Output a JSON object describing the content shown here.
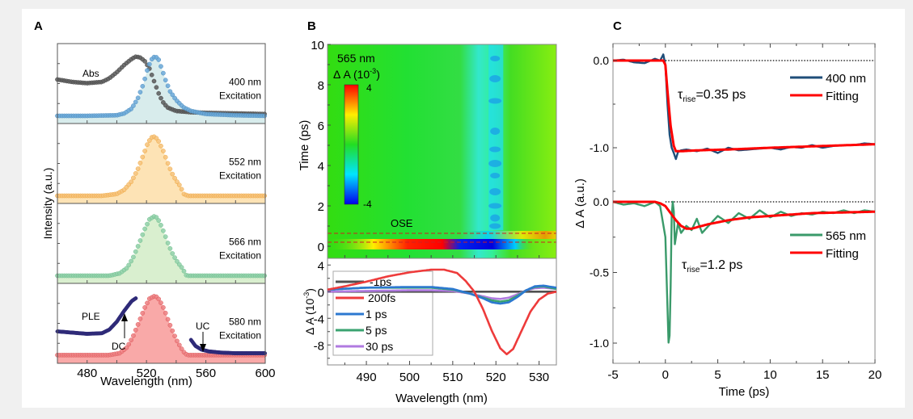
{
  "panel_labels": [
    "A",
    "B",
    "C"
  ],
  "colors": {
    "abs": "#4a4a4a",
    "ex400": "#4f8fc0",
    "ex400_fill": "#d8ecec",
    "ex400_text": "#2f5f86",
    "ex552": "#f0a840",
    "ex552_fill": "#fde3b5",
    "ex552_text": "#c88a10",
    "ex566": "#6fbf8f",
    "ex566_fill": "#d9efcf",
    "ex566_text": "#3f8a5f",
    "ex580": "#e0585a",
    "ex580_fill": "#f9a9a8",
    "ex580_text": "#8a1f2f",
    "ple": "#2e2a78",
    "c_400": "#1f4e79",
    "c_565": "#3a9a6a",
    "fit": "#ff0000"
  },
  "chart_data": [
    {
      "id": "A",
      "type": "scatter",
      "title": "",
      "xlabel": "Wavelength (nm)",
      "ylabel": "Intensity (a.u.)",
      "xlim": [
        460,
        600
      ],
      "xticks": [
        480,
        520,
        560,
        600
      ],
      "subplots": [
        {
          "label_line1": "400 nm",
          "label_line2": "Excitation",
          "annotations": [
            "Abs"
          ],
          "series": [
            {
              "name": "Abs",
              "x": [
                460,
                470,
                480,
                490,
                495,
                500,
                505,
                510,
                513,
                516,
                519,
                522,
                525,
                528,
                531,
                534,
                540,
                550,
                560,
                580,
                600
              ],
              "y": [
                0.62,
                0.58,
                0.56,
                0.58,
                0.64,
                0.74,
                0.86,
                0.96,
                1.0,
                0.98,
                0.92,
                0.8,
                0.6,
                0.4,
                0.25,
                0.16,
                0.1,
                0.08,
                0.07,
                0.06,
                0.05
              ]
            },
            {
              "name": "PL 400 nm",
              "x": [
                460,
                480,
                500,
                505,
                510,
                514,
                518,
                521,
                524,
                526,
                528,
                530,
                533,
                536,
                540,
                545,
                550,
                560,
                580,
                600
              ],
              "y": [
                0.02,
                0.02,
                0.03,
                0.06,
                0.14,
                0.3,
                0.55,
                0.82,
                0.98,
                1.0,
                0.96,
                0.82,
                0.6,
                0.42,
                0.28,
                0.16,
                0.1,
                0.05,
                0.03,
                0.02
              ]
            }
          ]
        },
        {
          "label_line1": "552 nm",
          "label_line2": "Excitation",
          "series": [
            {
              "name": "PL 552 nm",
              "x": [
                460,
                490,
                500,
                505,
                510,
                514,
                518,
                521,
                524,
                526,
                528,
                531,
                534,
                537,
                540,
                543,
                545,
                548,
                560,
                600
              ],
              "y": [
                0.02,
                0.02,
                0.05,
                0.12,
                0.26,
                0.45,
                0.7,
                0.9,
                1.0,
                0.99,
                0.93,
                0.78,
                0.58,
                0.4,
                0.27,
                0.17,
                0.05,
                0.02,
                0.02,
                0.02
              ]
            }
          ]
        },
        {
          "label_line1": "566 nm",
          "label_line2": "Excitation",
          "series": [
            {
              "name": "PL 566 nm",
              "x": [
                460,
                495,
                502,
                507,
                511,
                515,
                519,
                522,
                525,
                527,
                529,
                532,
                535,
                538,
                541,
                544,
                547,
                560,
                600
              ],
              "y": [
                0.02,
                0.02,
                0.06,
                0.15,
                0.32,
                0.55,
                0.8,
                0.95,
                1.0,
                0.98,
                0.9,
                0.72,
                0.52,
                0.36,
                0.24,
                0.15,
                0.02,
                0.02,
                0.02
              ]
            }
          ]
        },
        {
          "label_line1": "580 nm",
          "label_line2": "Excitation",
          "annotations": [
            "PLE",
            "DC",
            "UC"
          ],
          "series": [
            {
              "name": "PL 580 nm",
              "x": [
                460,
                495,
                502,
                507,
                511,
                515,
                519,
                522,
                525,
                527,
                529,
                532,
                535,
                538,
                541,
                544,
                546,
                548,
                560,
                600
              ],
              "y": [
                0.03,
                0.03,
                0.06,
                0.16,
                0.34,
                0.58,
                0.82,
                0.96,
                1.0,
                0.99,
                0.93,
                0.78,
                0.58,
                0.4,
                0.24,
                0.12,
                0.05,
                0.03,
                0.03,
                0.03
              ]
            },
            {
              "name": "PLE",
              "x": [
                460,
                470,
                480,
                490,
                495,
                500,
                505,
                510,
                513
              ],
              "y": [
                0.42,
                0.4,
                0.38,
                0.39,
                0.45,
                0.58,
                0.76,
                0.92,
                0.97
              ]
            },
            {
              "name": "UC",
              "x": [
                550,
                553,
                557,
                562,
                570,
                580,
                600
              ],
              "y": [
                0.28,
                0.18,
                0.12,
                0.09,
                0.07,
                0.06,
                0.06
              ]
            }
          ]
        }
      ]
    },
    {
      "id": "B-heatmap",
      "type": "heatmap",
      "xlabel": "Wavelength (nm)",
      "ylabel": "Time (ps)",
      "xlim": [
        481,
        534
      ],
      "ylim": [
        -0.6,
        10
      ],
      "yticks": [
        0,
        2,
        4,
        6,
        8,
        10
      ],
      "colorbar": {
        "title_line1": "565 nm",
        "title_symbol": "Δ A",
        "title_unit": "(10",
        "title_exp": "-3",
        "title_close": ")",
        "max_label": "4",
        "min_label": "-4",
        "range": [
          -4,
          4
        ]
      },
      "annotation": "OSE",
      "dashed_lines_time": [
        0.2,
        0.65
      ]
    },
    {
      "id": "B-spectra",
      "type": "line",
      "xlabel": "Wavelength (nm)",
      "ylabel_symbol": "Δ A",
      "ylabel_unit": "(10",
      "ylabel_exp": "-3",
      "ylabel_close": ")",
      "xlim": [
        481,
        534
      ],
      "ylim": [
        -11,
        5
      ],
      "xticks": [
        490,
        500,
        510,
        520,
        530
      ],
      "yticks": [
        4,
        0,
        -4,
        -8
      ],
      "series": [
        {
          "name": "-1ps",
          "color": "#505050",
          "x": [
            481,
            490,
            500,
            510,
            520,
            530,
            534
          ],
          "y": [
            0,
            0,
            0,
            0,
            0,
            0,
            0
          ]
        },
        {
          "name": "200fs",
          "color": "#ee3b3b",
          "x": [
            481,
            485,
            490,
            495,
            500,
            505,
            508,
            511,
            513,
            515,
            517,
            519,
            521,
            522.5,
            524,
            526,
            528,
            530,
            532,
            534
          ],
          "y": [
            0.3,
            0.8,
            1.5,
            2.3,
            2.9,
            3.3,
            3.3,
            2.8,
            1.6,
            0.0,
            -2.6,
            -5.8,
            -8.5,
            -9.4,
            -8.6,
            -5.8,
            -3.0,
            -1.2,
            -0.3,
            0.0
          ]
        },
        {
          "name": "1 ps",
          "color": "#2c78d0",
          "x": [
            481,
            490,
            500,
            505,
            510,
            514,
            517,
            519,
            521,
            523,
            525,
            527,
            529,
            531,
            534
          ],
          "y": [
            0.3,
            0.6,
            0.7,
            0.7,
            0.4,
            -0.3,
            -1.0,
            -1.6,
            -1.8,
            -1.6,
            -0.8,
            0.2,
            0.8,
            0.9,
            0.6
          ]
        },
        {
          "name": "5 ps",
          "color": "#3aa370",
          "x": [
            481,
            490,
            500,
            505,
            510,
            514,
            517,
            519,
            521,
            523,
            525,
            527,
            529,
            531,
            534
          ],
          "y": [
            0.3,
            0.6,
            0.6,
            0.6,
            0.3,
            -0.3,
            -0.9,
            -1.3,
            -1.5,
            -1.3,
            -0.6,
            0.2,
            0.7,
            0.8,
            0.4
          ]
        },
        {
          "name": "30 ps",
          "color": "#b07ae0",
          "x": [
            481,
            490,
            500,
            505,
            510,
            514,
            517,
            519,
            521,
            523,
            525,
            527,
            529,
            531,
            534
          ],
          "y": [
            0.0,
            0.1,
            0.2,
            0.2,
            0.1,
            -0.3,
            -0.7,
            -1.0,
            -1.1,
            -0.9,
            -0.4,
            0.2,
            0.5,
            0.6,
            0.4
          ]
        }
      ]
    },
    {
      "id": "C",
      "type": "line",
      "xlabel": "Time (ps)",
      "ylabel": "Δ  A (a.u.)",
      "xlim": [
        -5,
        20
      ],
      "xticks": [
        -5,
        0,
        5,
        10,
        15,
        20
      ],
      "subplots": [
        {
          "yticks": [
            "0.0",
            "-1.0"
          ],
          "ylim": [
            -1.3,
            0.2
          ],
          "annotation_tau": "τ",
          "annotation_sub": "rise",
          "annotation_val": "=0.35 ps",
          "series": [
            {
              "name": "400 nm",
              "color": "#1f4e79",
              "x": [
                -5,
                -4,
                -3,
                -2,
                -1,
                -0.5,
                -0.2,
                0,
                0.2,
                0.4,
                0.6,
                0.8,
                1,
                1.2,
                1.5,
                2,
                3,
                4,
                5,
                6,
                7,
                8,
                9,
                10,
                11,
                12,
                13,
                14,
                15,
                16,
                17,
                18,
                19,
                20
              ],
              "y": [
                0,
                0.01,
                -0.02,
                -0.03,
                0.02,
                0.0,
                0.07,
                -0.05,
                -0.5,
                -0.85,
                -1.0,
                -1.06,
                -1.13,
                -1.05,
                -1.03,
                -1.02,
                -1.04,
                -1.01,
                -1.06,
                -1.0,
                -1.03,
                -1.02,
                -1.01,
                -1.0,
                -1.02,
                -0.99,
                -1.0,
                -0.97,
                -1.0,
                -0.98,
                -0.97,
                -0.97,
                -0.95,
                -0.96
              ]
            },
            {
              "name": "Fitting",
              "color": "#ff0000",
              "x": [
                -5,
                -1,
                -0.2,
                0,
                0.2,
                0.5,
                0.8,
                1,
                1.5,
                3,
                6,
                10,
                15,
                20
              ],
              "y": [
                0,
                0,
                0,
                -0.05,
                -0.35,
                -0.75,
                -0.98,
                -1.04,
                -1.04,
                -1.03,
                -1.02,
                -1.0,
                -0.98,
                -0.96
              ]
            }
          ]
        },
        {
          "yticks": [
            "0.0",
            "-0.5",
            "-1.0"
          ],
          "ylim": [
            -1.15,
            0.1
          ],
          "annotation_tau": "τ",
          "annotation_sub": "rise",
          "annotation_val": "=1.2 ps",
          "series": [
            {
              "name": "565 nm",
              "color": "#3a9a6a",
              "x": [
                -5,
                -4,
                -3,
                -2,
                -1,
                -0.5,
                0,
                0.2,
                0.35,
                0.5,
                0.6,
                0.75,
                0.9,
                1.2,
                1.5,
                2,
                2.5,
                3,
                3.5,
                4,
                5,
                6,
                7,
                8,
                9,
                10,
                11,
                12,
                13,
                14,
                15,
                16,
                17,
                18,
                19,
                20
              ],
              "y": [
                0,
                -0.02,
                -0.01,
                -0.03,
                0,
                -0.03,
                -0.25,
                -0.75,
                -1.12,
                -0.6,
                -0.1,
                0.05,
                -0.3,
                -0.15,
                -0.22,
                -0.17,
                -0.2,
                -0.12,
                -0.22,
                -0.18,
                -0.1,
                -0.15,
                -0.08,
                -0.12,
                -0.06,
                -0.11,
                -0.07,
                -0.1,
                -0.08,
                -0.09,
                -0.07,
                -0.08,
                -0.06,
                -0.08,
                -0.06,
                -0.07
              ]
            },
            {
              "name": "Fitting",
              "color": "#ff0000",
              "x": [
                -5,
                -1,
                -0.5,
                0,
                0.5,
                1,
                1.5,
                2,
                2.5,
                3,
                4,
                6,
                8,
                10,
                14,
                20
              ],
              "y": [
                0,
                0,
                -0.01,
                -0.03,
                -0.08,
                -0.13,
                -0.17,
                -0.19,
                -0.19,
                -0.18,
                -0.16,
                -0.13,
                -0.11,
                -0.1,
                -0.08,
                -0.07
              ]
            }
          ]
        }
      ]
    }
  ]
}
